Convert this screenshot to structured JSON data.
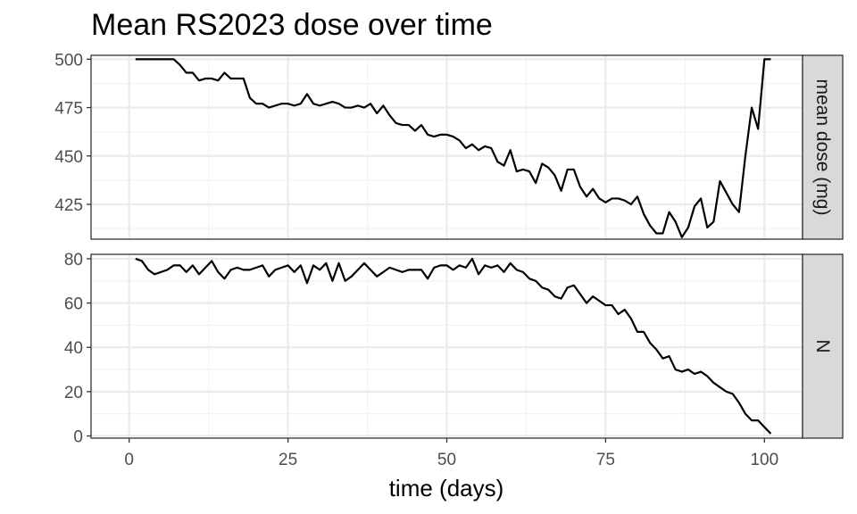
{
  "title": "Mean RS2023 dose over time",
  "chart_data": {
    "type": "line",
    "title": "Mean RS2023 dose over time",
    "xlabel": "time (days)",
    "ylabel": "",
    "xlim": [
      -6,
      106
    ],
    "x_ticks": [
      0,
      25,
      50,
      75,
      100
    ],
    "x_tick_labels": [
      "0",
      "25",
      "50",
      "75",
      "100"
    ],
    "grid": true,
    "x": [
      1,
      2,
      3,
      4,
      5,
      6,
      7,
      8,
      9,
      10,
      11,
      12,
      13,
      14,
      15,
      16,
      17,
      18,
      19,
      20,
      21,
      22,
      23,
      24,
      25,
      26,
      27,
      28,
      29,
      30,
      31,
      32,
      33,
      34,
      35,
      36,
      37,
      38,
      39,
      40,
      41,
      42,
      43,
      44,
      45,
      46,
      47,
      48,
      49,
      50,
      51,
      52,
      53,
      54,
      55,
      56,
      57,
      58,
      59,
      60,
      61,
      62,
      63,
      64,
      65,
      66,
      67,
      68,
      69,
      70,
      71,
      72,
      73,
      74,
      75,
      76,
      77,
      78,
      79,
      80,
      81,
      82,
      83,
      84,
      85,
      86,
      87,
      88,
      89,
      90,
      91,
      92,
      93,
      94,
      95,
      96,
      97,
      98,
      99,
      100,
      101
    ],
    "panels": [
      {
        "strip_label": "mean dose (mg)",
        "ylim": [
          407,
          502
        ],
        "y_ticks": [
          425,
          450,
          475,
          500
        ],
        "y_tick_labels": [
          "425",
          "450",
          "475",
          "500"
        ],
        "series": [
          {
            "values": [
              500,
              500,
              500,
              500,
              500,
              500,
              500,
              497,
              493,
              493,
              489,
              490,
              490,
              489,
              493,
              490,
              490,
              490,
              480,
              477,
              477,
              475,
              476,
              477,
              477,
              476,
              477,
              482,
              477,
              476,
              477,
              478,
              477,
              475,
              475,
              476,
              475,
              477,
              472,
              476,
              471,
              467,
              466,
              466,
              463,
              466,
              461,
              460,
              461,
              461,
              460,
              458,
              454,
              456,
              453,
              455,
              454,
              447,
              445,
              453,
              442,
              443,
              442,
              436,
              446,
              444,
              440,
              432,
              443,
              443,
              434,
              429,
              433,
              428,
              426,
              428,
              428,
              427,
              425,
              429,
              420,
              414,
              410,
              410,
              421,
              416,
              408,
              413,
              424,
              428,
              413,
              416,
              437,
              431,
              425,
              421,
              450,
              475,
              464,
              500,
              500
            ]
          }
        ]
      },
      {
        "strip_label": "N",
        "ylim": [
          -1,
          82
        ],
        "y_ticks": [
          0,
          20,
          40,
          60,
          80
        ],
        "y_tick_labels": [
          "0",
          "20",
          "40",
          "60",
          "80"
        ],
        "series": [
          {
            "values": [
              80,
              79,
              75,
              73,
              74,
              75,
              77,
              77,
              74,
              77,
              73,
              76,
              79,
              74,
              71,
              75,
              76,
              75,
              75,
              76,
              77,
              72,
              75,
              76,
              77,
              74,
              77,
              69,
              77,
              75,
              78,
              70,
              78,
              70,
              72,
              75,
              78,
              75,
              72,
              74,
              76,
              75,
              74,
              75,
              75,
              75,
              71,
              76,
              77,
              77,
              75,
              77,
              76,
              80,
              73,
              77,
              76,
              77,
              74,
              78,
              75,
              74,
              71,
              70,
              67,
              66,
              63,
              62,
              67,
              68,
              64,
              60,
              63,
              61,
              59,
              59,
              55,
              57,
              53,
              47,
              47,
              42,
              39,
              35,
              36,
              30,
              29,
              30,
              28,
              29,
              27,
              24,
              22,
              20,
              19,
              15,
              10,
              7,
              7,
              4,
              1
            ]
          }
        ]
      }
    ]
  }
}
